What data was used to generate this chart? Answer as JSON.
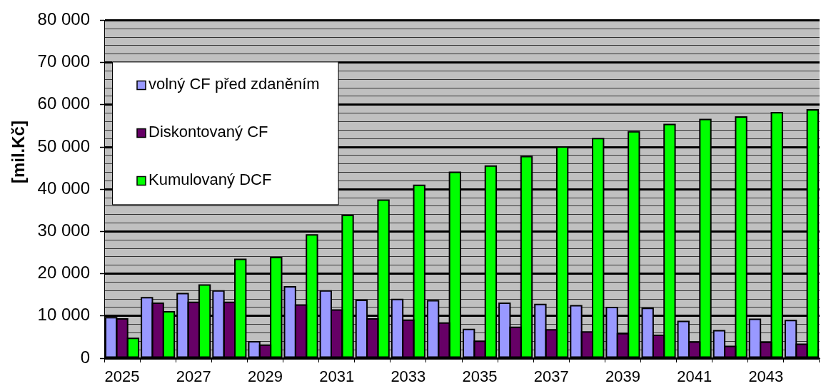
{
  "chart_data": {
    "type": "bar",
    "ylabel": "[mil.Kč]",
    "categories": [
      "2025",
      null,
      "2027",
      null,
      "2029",
      null,
      "2031",
      null,
      "2033",
      null,
      "2035",
      null,
      "2037",
      null,
      "2039",
      null,
      "2041",
      null,
      "2043",
      null
    ],
    "series": [
      {
        "name": "volný CF před zdaněním",
        "color": "#9999ff",
        "values": [
          9600,
          14300,
          15300,
          15900,
          3900,
          16900,
          15900,
          13700,
          13900,
          13600,
          6800,
          13000,
          12700,
          12400,
          12000,
          11800,
          8700,
          6500,
          9200,
          8900
        ]
      },
      {
        "name": "Diskontovaný CF",
        "color": "#660066",
        "values": [
          9300,
          13000,
          13200,
          13200,
          3100,
          12600,
          11400,
          9300,
          9000,
          8300,
          4000,
          7300,
          6700,
          6200,
          5800,
          5400,
          3800,
          2800,
          3700,
          3300
        ]
      },
      {
        "name": "Kumulovaný DCF",
        "color": "#00ff00",
        "values": [
          4700,
          11000,
          17300,
          23400,
          23800,
          29200,
          33800,
          37400,
          40900,
          44000,
          45500,
          47700,
          50000,
          52000,
          53600,
          55300,
          56500,
          57100,
          58100,
          58800
        ]
      }
    ],
    "ylim": [
      0,
      80000
    ],
    "yticks": [
      0,
      {
        "value": 2000,
        "label": null
      },
      {
        "value": 4000,
        "label": null
      },
      {
        "value": 6000,
        "label": null
      },
      {
        "value": 8000,
        "label": null
      },
      {
        "value": 10000,
        "label": "10 000"
      },
      {
        "value": 12000,
        "label": null
      },
      {
        "value": 14000,
        "label": null
      },
      {
        "value": 16000,
        "label": null
      },
      {
        "value": 18000,
        "label": null
      },
      {
        "value": 20000,
        "label": "20 000"
      },
      {
        "value": 22000,
        "label": null
      },
      {
        "value": 24000,
        "label": null
      },
      {
        "value": 26000,
        "label": null
      },
      {
        "value": 28000,
        "label": null
      },
      {
        "value": 30000,
        "label": "30 000"
      },
      {
        "value": 32000,
        "label": null
      },
      {
        "value": 34000,
        "label": null
      },
      {
        "value": 36000,
        "label": null
      },
      {
        "value": 38000,
        "label": null
      },
      {
        "value": 40000,
        "label": "40 000"
      },
      {
        "value": 42000,
        "label": null
      },
      {
        "value": 44000,
        "label": null
      },
      {
        "value": 46000,
        "label": null
      },
      {
        "value": 48000,
        "label": null
      },
      {
        "value": 50000,
        "label": "50 000"
      },
      {
        "value": 52000,
        "label": null
      },
      {
        "value": 54000,
        "label": null
      },
      {
        "value": 56000,
        "label": null
      },
      {
        "value": 58000,
        "label": null
      },
      {
        "value": 60000,
        "label": "60 000"
      },
      {
        "value": 62000,
        "label": null
      },
      {
        "value": 64000,
        "label": null
      },
      {
        "value": 66000,
        "label": null
      },
      {
        "value": 68000,
        "label": null
      },
      {
        "value": 70000,
        "label": "70 000"
      },
      {
        "value": 72000,
        "label": null
      },
      {
        "value": 74000,
        "label": null
      },
      {
        "value": 76000,
        "label": null
      },
      {
        "value": 78000,
        "label": null
      },
      {
        "value": 80000,
        "label": "80 000"
      }
    ],
    "grid": "y",
    "legend": "top left"
  }
}
